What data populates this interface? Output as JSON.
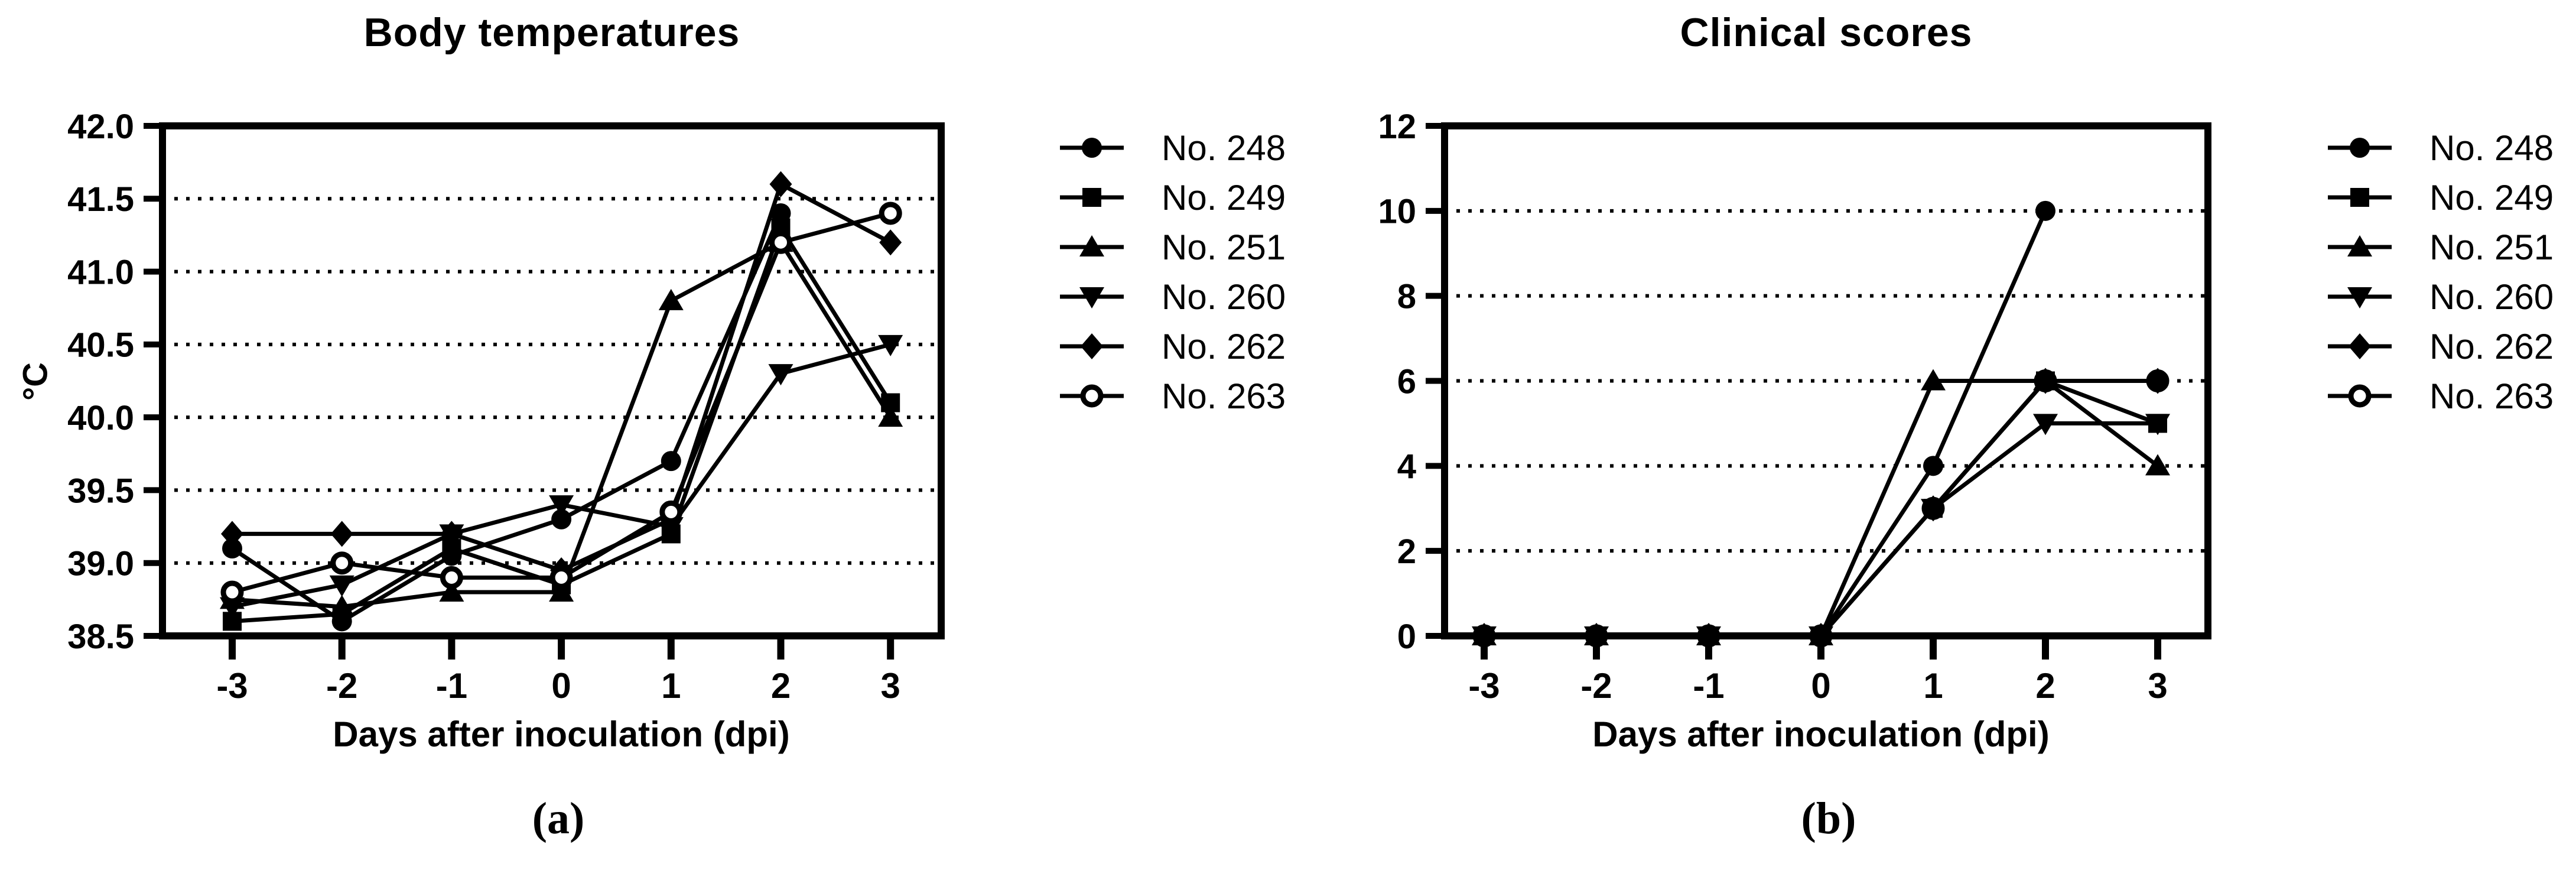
{
  "figure": {
    "panels": [
      {
        "caption": "(a)"
      },
      {
        "caption": "(b)"
      }
    ]
  },
  "chart_data": [
    {
      "type": "line",
      "title": "Body temperatures",
      "xlabel": "Days after inoculation (dpi)",
      "ylabel": "°C",
      "x": [
        -3,
        -2,
        -1,
        0,
        1,
        2,
        3
      ],
      "xtick_labels": [
        "-3",
        "-2",
        "-1",
        "0",
        "1",
        "2",
        "3"
      ],
      "ylim": [
        38.5,
        42.0
      ],
      "yticks": [
        38.5,
        39.0,
        39.5,
        40.0,
        40.5,
        41.0,
        41.5,
        42.0
      ],
      "ytick_labels": [
        "38.5",
        "39.0",
        "39.5",
        "40.0",
        "40.5",
        "41.0",
        "41.5",
        "42.0"
      ],
      "grid": "dotted-horizontal",
      "legend_position": "right",
      "series": [
        {
          "name": "No. 248",
          "marker": "circle",
          "color": "#000000",
          "values": [
            39.1,
            38.6,
            39.05,
            39.3,
            39.7,
            41.4,
            null
          ]
        },
        {
          "name": "No. 249",
          "marker": "square",
          "color": "#000000",
          "values": [
            38.6,
            38.65,
            39.1,
            38.85,
            39.2,
            41.3,
            40.1
          ]
        },
        {
          "name": "No. 251",
          "marker": "triangle-up",
          "color": "#000000",
          "values": [
            38.75,
            38.7,
            38.8,
            38.8,
            40.8,
            41.2,
            40.0
          ]
        },
        {
          "name": "No. 260",
          "marker": "triangle-down",
          "color": "#000000",
          "values": [
            38.7,
            38.85,
            39.2,
            39.4,
            39.25,
            40.3,
            40.5
          ]
        },
        {
          "name": "No. 262",
          "marker": "diamond",
          "color": "#000000",
          "values": [
            39.2,
            39.2,
            39.2,
            38.95,
            39.3,
            41.6,
            41.2
          ]
        },
        {
          "name": "No. 263",
          "marker": "circle-open",
          "color": "#000000",
          "values": [
            38.8,
            39.0,
            38.9,
            38.9,
            39.35,
            41.2,
            41.4
          ]
        }
      ]
    },
    {
      "type": "line",
      "title": "Clinical scores",
      "xlabel": "Days after inoculation (dpi)",
      "ylabel": "",
      "x": [
        -3,
        -2,
        -1,
        0,
        1,
        2,
        3
      ],
      "xtick_labels": [
        "-3",
        "-2",
        "-1",
        "0",
        "1",
        "2",
        "3"
      ],
      "ylim": [
        0,
        12
      ],
      "yticks": [
        0,
        2,
        4,
        6,
        8,
        10,
        12
      ],
      "ytick_labels": [
        "0",
        "2",
        "4",
        "6",
        "8",
        "10",
        "12"
      ],
      "grid": "dotted-horizontal",
      "legend_position": "right",
      "series": [
        {
          "name": "No. 248",
          "marker": "circle",
          "color": "#000000",
          "values": [
            0,
            0,
            0,
            0,
            4,
            10,
            null
          ]
        },
        {
          "name": "No. 249",
          "marker": "square",
          "color": "#000000",
          "values": [
            0,
            0,
            0,
            0,
            3,
            6,
            5
          ]
        },
        {
          "name": "No. 251",
          "marker": "triangle-up",
          "color": "#000000",
          "values": [
            0,
            0,
            0,
            0,
            6,
            6,
            4
          ]
        },
        {
          "name": "No. 260",
          "marker": "triangle-down",
          "color": "#000000",
          "values": [
            0,
            0,
            0,
            0,
            3,
            5,
            5
          ]
        },
        {
          "name": "No. 262",
          "marker": "diamond",
          "color": "#000000",
          "values": [
            0,
            0,
            0,
            0,
            3,
            6,
            6
          ]
        },
        {
          "name": "No. 263",
          "marker": "circle-open",
          "color": "#000000",
          "values": [
            0,
            0,
            0,
            0,
            3,
            6,
            6
          ]
        }
      ]
    }
  ]
}
